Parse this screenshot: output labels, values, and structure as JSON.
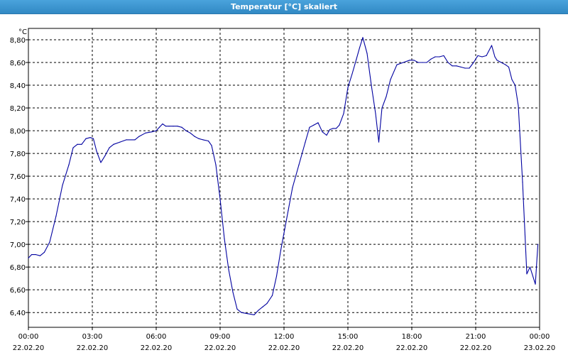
{
  "window": {
    "title": "Temperatur [°C] skaliert"
  },
  "chart_data": {
    "type": "line",
    "title": "Temperatur [°C] skaliert",
    "ylabel": "°C",
    "xlabel": "",
    "ylim": [
      6.27,
      8.9
    ],
    "xlim": [
      0,
      24
    ],
    "grid": true,
    "legend": "none",
    "y_ticks": [
      {
        "value": 6.4,
        "label": "6,40"
      },
      {
        "value": 6.6,
        "label": "6,60"
      },
      {
        "value": 6.8,
        "label": "6,80"
      },
      {
        "value": 7.0,
        "label": "7,00"
      },
      {
        "value": 7.2,
        "label": "7,20"
      },
      {
        "value": 7.4,
        "label": "7,40"
      },
      {
        "value": 7.6,
        "label": "7,60"
      },
      {
        "value": 7.8,
        "label": "7,80"
      },
      {
        "value": 8.0,
        "label": "8,00"
      },
      {
        "value": 8.2,
        "label": "8,20"
      },
      {
        "value": 8.4,
        "label": "8,40"
      },
      {
        "value": 8.6,
        "label": "8,60"
      },
      {
        "value": 8.8,
        "label": "8,80"
      }
    ],
    "x_ticks": [
      {
        "value": 0,
        "time": "00:00",
        "date": "22.02.20"
      },
      {
        "value": 3,
        "time": "03:00",
        "date": "22.02.20"
      },
      {
        "value": 6,
        "time": "06:00",
        "date": "22.02.20"
      },
      {
        "value": 9,
        "time": "09:00",
        "date": "22.02.20"
      },
      {
        "value": 12,
        "time": "12:00",
        "date": "22.02.20"
      },
      {
        "value": 15,
        "time": "15:00",
        "date": "22.02.20"
      },
      {
        "value": 18,
        "time": "18:00",
        "date": "22.02.20"
      },
      {
        "value": 21,
        "time": "21:00",
        "date": "22.02.20"
      },
      {
        "value": 24,
        "time": "00:00",
        "date": "23.02.20"
      }
    ],
    "line_color": "#0000a0",
    "series": [
      {
        "x": [
          0,
          0.15,
          0.35,
          0.55,
          0.75,
          1.0,
          1.3,
          1.6,
          1.9,
          2.1,
          2.3,
          2.5,
          2.7,
          2.9,
          3.05,
          3.2,
          3.4,
          3.6,
          3.8,
          4.0,
          4.3,
          4.6,
          5.0,
          5.2,
          5.5,
          5.8,
          6.0,
          6.15,
          6.3,
          6.45,
          6.6,
          6.8,
          7.0,
          7.2,
          7.4,
          7.6,
          7.8,
          8.0,
          8.2,
          8.45,
          8.6,
          8.8,
          9.0,
          9.2,
          9.4,
          9.6,
          9.8,
          10.0,
          10.3,
          10.6,
          10.8,
          11.0,
          11.2,
          11.45,
          11.65,
          11.85,
          12.0,
          12.2,
          12.4,
          12.7,
          13.0,
          13.2,
          13.4,
          13.6,
          13.8,
          14.0,
          14.15,
          14.3,
          14.45,
          14.6,
          14.8,
          15.0,
          15.2,
          15.4,
          15.55,
          15.7,
          15.9,
          16.1,
          16.3,
          16.45,
          16.6,
          16.8,
          17.0,
          17.3,
          17.6,
          17.9,
          18.1,
          18.3,
          18.5,
          18.7,
          18.9,
          19.1,
          19.3,
          19.5,
          19.7,
          19.9,
          20.1,
          20.3,
          20.5,
          20.7,
          20.9,
          21.1,
          21.3,
          21.5,
          21.75,
          21.9,
          22.0,
          22.2,
          22.4,
          22.55,
          22.7,
          22.85,
          23.0,
          23.2,
          23.4,
          23.55,
          23.8,
          23.92
        ],
        "values": [
          6.88,
          6.91,
          6.91,
          6.9,
          6.93,
          7.02,
          7.25,
          7.52,
          7.7,
          7.85,
          7.88,
          7.88,
          7.93,
          7.94,
          7.93,
          7.82,
          7.72,
          7.78,
          7.85,
          7.88,
          7.9,
          7.92,
          7.92,
          7.95,
          7.98,
          7.99,
          8.0,
          8.03,
          8.06,
          8.04,
          8.04,
          8.04,
          8.04,
          8.03,
          8.0,
          7.98,
          7.95,
          7.93,
          7.92,
          7.91,
          7.87,
          7.7,
          7.4,
          7.05,
          6.78,
          6.58,
          6.43,
          6.4,
          6.39,
          6.38,
          6.42,
          6.45,
          6.48,
          6.55,
          6.72,
          6.95,
          7.1,
          7.3,
          7.5,
          7.7,
          7.9,
          8.03,
          8.05,
          8.07,
          7.99,
          7.96,
          8.01,
          8.02,
          8.02,
          8.05,
          8.15,
          8.38,
          8.5,
          8.63,
          8.73,
          8.82,
          8.68,
          8.4,
          8.15,
          7.9,
          8.2,
          8.3,
          8.45,
          8.58,
          8.6,
          8.62,
          8.62,
          8.6,
          8.6,
          8.6,
          8.63,
          8.65,
          8.65,
          8.66,
          8.6,
          8.57,
          8.57,
          8.56,
          8.55,
          8.55,
          8.6,
          8.66,
          8.65,
          8.66,
          8.75,
          8.65,
          8.62,
          8.6,
          8.58,
          8.56,
          8.45,
          8.4,
          8.22,
          7.55,
          6.74,
          6.8,
          6.65,
          7.0
        ]
      }
    ]
  }
}
